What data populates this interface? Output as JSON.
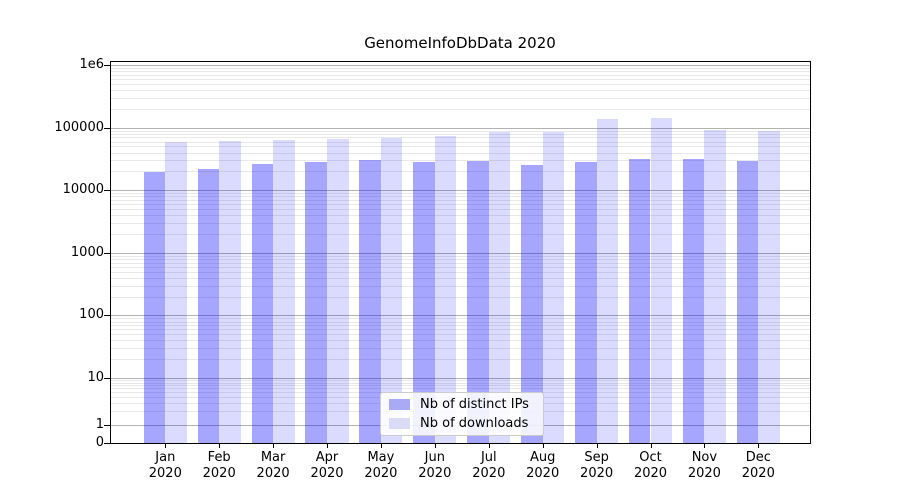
{
  "chart_data": {
    "type": "bar",
    "title": "GenomeInfoDbData 2020",
    "x_categories": [
      "Jan",
      "Feb",
      "Mar",
      "Apr",
      "May",
      "Jun",
      "Jul",
      "Aug",
      "Sep",
      "Oct",
      "Nov",
      "Dec"
    ],
    "x_sublabel": "2020",
    "series": [
      {
        "name": "Nb of distinct IPs",
        "color": "rgba(0,0,255,0.35)",
        "swatch_color": "#a9a9f5",
        "values": [
          19500,
          22000,
          26000,
          28600,
          30000,
          28200,
          28900,
          25600,
          27900,
          31100,
          31500,
          28900
        ]
      },
      {
        "name": "Nb of downloads",
        "color": "rgba(0,0,255,0.14)",
        "swatch_color": "#dbdbf8",
        "values": [
          58000,
          61000,
          63500,
          66700,
          69200,
          72600,
          86300,
          86300,
          137000,
          141000,
          90500,
          88500
        ]
      }
    ],
    "yscale": "log",
    "ylim": [
      0,
      1000000
    ],
    "yticks": [
      {
        "label": "0",
        "value": 0
      },
      {
        "label": "1",
        "value": 1
      },
      {
        "label": "10",
        "value": 10
      },
      {
        "label": "100",
        "value": 100
      },
      {
        "label": "1000",
        "value": 1000
      },
      {
        "label": "10000",
        "value": 10000
      },
      {
        "label": "100000",
        "value": 100000
      },
      {
        "label": "1e6",
        "value": 1000000
      }
    ],
    "grid": "major+minor horizontal",
    "legend_position": "lower center"
  },
  "colors": {
    "grid_major": "#b2b2b2",
    "grid_minor": "#e8e8e8",
    "axis": "#000000",
    "background": "#ffffff"
  }
}
